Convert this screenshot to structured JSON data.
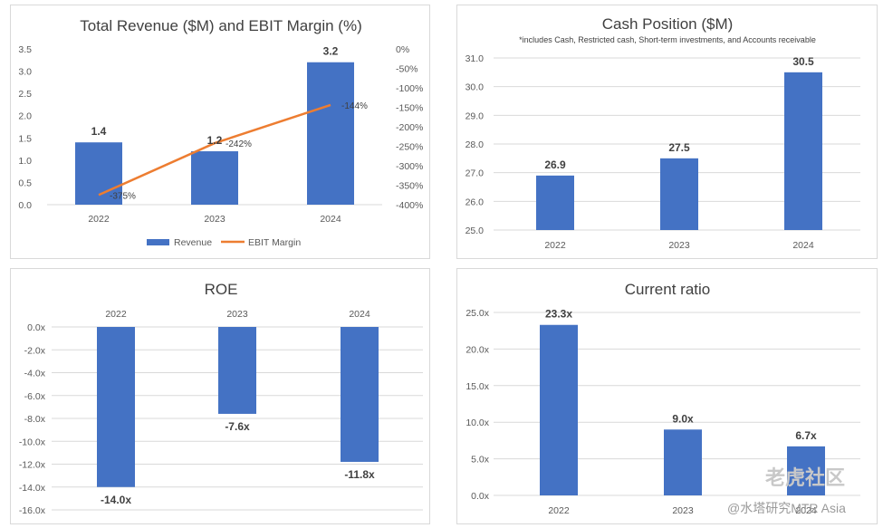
{
  "colors": {
    "bar": "#4472c4",
    "line": "#ed7d31",
    "grid": "#d9d9d9"
  },
  "chart_data": [
    {
      "id": "revenue",
      "type": "bar",
      "title": "Total Revenue ($M) and EBIT Margin (%)",
      "categories": [
        "2022",
        "2023",
        "2024"
      ],
      "series": [
        {
          "name": "Revenue",
          "values": [
            1.4,
            1.2,
            3.2
          ],
          "labels": [
            "1.4",
            "1.2",
            "3.2"
          ]
        },
        {
          "name": "EBIT Margin",
          "type": "line",
          "axis": "secondary",
          "values": [
            -375,
            -242,
            -144
          ],
          "labels": [
            "-375%",
            "-242%",
            "-144%"
          ]
        }
      ],
      "ylim": [
        0,
        3.5
      ],
      "yticks": [
        "0.0",
        "0.5",
        "1.0",
        "1.5",
        "2.0",
        "2.5",
        "3.0",
        "3.5"
      ],
      "y2lim": [
        -400,
        0
      ],
      "y2ticks": [
        "0%",
        "-50%",
        "-100%",
        "-150%",
        "-200%",
        "-250%",
        "-300%",
        "-350%",
        "-400%"
      ],
      "legend": [
        "Revenue",
        "EBIT Margin"
      ]
    },
    {
      "id": "cash",
      "type": "bar",
      "title": "Cash Position ($M)",
      "note": "*includes Cash, Restricted cash, Short-term investments, and Accounts receivable",
      "categories": [
        "2022",
        "2023",
        "2024"
      ],
      "values": [
        26.9,
        27.5,
        30.5
      ],
      "labels": [
        "26.9",
        "27.5",
        "30.5"
      ],
      "ylim": [
        25,
        31
      ],
      "yticks": [
        "25.0",
        "26.0",
        "27.0",
        "28.0",
        "29.0",
        "30.0",
        "31.0"
      ]
    },
    {
      "id": "roe",
      "type": "bar",
      "title": "ROE",
      "categories": [
        "2022",
        "2023",
        "2024"
      ],
      "values": [
        -14.0,
        -7.6,
        -11.8
      ],
      "labels": [
        "-14.0x",
        "-7.6x",
        "-11.8x"
      ],
      "ylim": [
        -16,
        0
      ],
      "yticks": [
        "0.0x",
        "-2.0x",
        "-4.0x",
        "-6.0x",
        "-8.0x",
        "-10.0x",
        "-12.0x",
        "-14.0x",
        "-16.0x"
      ]
    },
    {
      "id": "current",
      "type": "bar",
      "title": "Current ratio",
      "categories": [
        "2022",
        "2023",
        "2024"
      ],
      "values": [
        23.3,
        9.0,
        6.7
      ],
      "labels": [
        "23.3x",
        "9.0x",
        "6.7x"
      ],
      "ylim": [
        0,
        25
      ],
      "yticks": [
        "0.0x",
        "5.0x",
        "10.0x",
        "15.0x",
        "20.0x",
        "25.0x"
      ]
    }
  ],
  "watermark": {
    "line1": "老虎社区",
    "line2": "@水塔研究MTR Asia"
  }
}
